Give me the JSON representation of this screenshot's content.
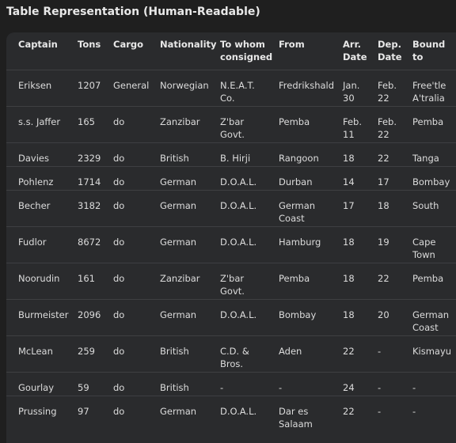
{
  "heading": "Table Representation (Human-Readable)",
  "columns": [
    [
      "Captain"
    ],
    [
      "Tons"
    ],
    [
      "Cargo"
    ],
    [
      "Nationality"
    ],
    [
      "To whom",
      "consigned"
    ],
    [
      "From"
    ],
    [
      "Arr.",
      "Date"
    ],
    [
      "Dep.",
      "Date"
    ],
    [
      "Bound",
      "to"
    ]
  ],
  "rows": [
    [
      [
        "Eriksen"
      ],
      [
        "1207"
      ],
      [
        "General"
      ],
      [
        "Norwegian"
      ],
      [
        "N.E.A.T.",
        "Co."
      ],
      [
        "Fredrikshald"
      ],
      [
        "Jan.",
        "30"
      ],
      [
        "Feb.",
        "22"
      ],
      [
        "Free'tle",
        "A'tralia"
      ]
    ],
    [
      [
        "s.s. Jaffer"
      ],
      [
        "165"
      ],
      [
        "do"
      ],
      [
        "Zanzibar"
      ],
      [
        "Z'bar",
        "Govt."
      ],
      [
        "Pemba"
      ],
      [
        "Feb.",
        "11"
      ],
      [
        "Feb.",
        "22"
      ],
      [
        "Pemba"
      ]
    ],
    [
      [
        "Davies"
      ],
      [
        "2329"
      ],
      [
        "do"
      ],
      [
        "British"
      ],
      [
        "B. Hirji"
      ],
      [
        "Rangoon"
      ],
      [
        "18"
      ],
      [
        "22"
      ],
      [
        "Tanga"
      ]
    ],
    [
      [
        "Pohlenz"
      ],
      [
        "1714"
      ],
      [
        "do"
      ],
      [
        "German"
      ],
      [
        "D.O.A.L."
      ],
      [
        "Durban"
      ],
      [
        "14"
      ],
      [
        "17"
      ],
      [
        "Bombay"
      ]
    ],
    [
      [
        "Becher"
      ],
      [
        "3182"
      ],
      [
        "do"
      ],
      [
        "German"
      ],
      [
        "D.O.A.L."
      ],
      [
        "German",
        "Coast"
      ],
      [
        "17"
      ],
      [
        "18"
      ],
      [
        "South"
      ]
    ],
    [
      [
        "Fudlor"
      ],
      [
        "8672"
      ],
      [
        "do"
      ],
      [
        "German"
      ],
      [
        "D.O.A.L."
      ],
      [
        "Hamburg"
      ],
      [
        "18"
      ],
      [
        "19"
      ],
      [
        "Cape",
        "Town"
      ]
    ],
    [
      [
        "Noorudin"
      ],
      [
        "161"
      ],
      [
        "do"
      ],
      [
        "Zanzibar"
      ],
      [
        "Z'bar",
        "Govt."
      ],
      [
        "Pemba"
      ],
      [
        "18"
      ],
      [
        "22"
      ],
      [
        "Pemba"
      ]
    ],
    [
      [
        "Burmeister"
      ],
      [
        "2096"
      ],
      [
        "do"
      ],
      [
        "German"
      ],
      [
        "D.O.A.L."
      ],
      [
        "Bombay"
      ],
      [
        "18"
      ],
      [
        "20"
      ],
      [
        "German",
        "Coast"
      ]
    ],
    [
      [
        "McLean"
      ],
      [
        "259"
      ],
      [
        "do"
      ],
      [
        "British"
      ],
      [
        "C.D. &",
        "Bros."
      ],
      [
        "Aden"
      ],
      [
        "22"
      ],
      [
        "-"
      ],
      [
        "Kismayu"
      ]
    ],
    [
      [
        "Gourlay"
      ],
      [
        "59"
      ],
      [
        "do"
      ],
      [
        "British"
      ],
      [
        "-"
      ],
      [
        "-"
      ],
      [
        "24"
      ],
      [
        "-"
      ],
      [
        "-"
      ]
    ],
    [
      [
        "Prussing"
      ],
      [
        "97"
      ],
      [
        "do"
      ],
      [
        "German"
      ],
      [
        "D.O.A.L."
      ],
      [
        "Dar es",
        "Salaam"
      ],
      [
        "22"
      ],
      [
        "-"
      ],
      [
        "-"
      ]
    ]
  ]
}
